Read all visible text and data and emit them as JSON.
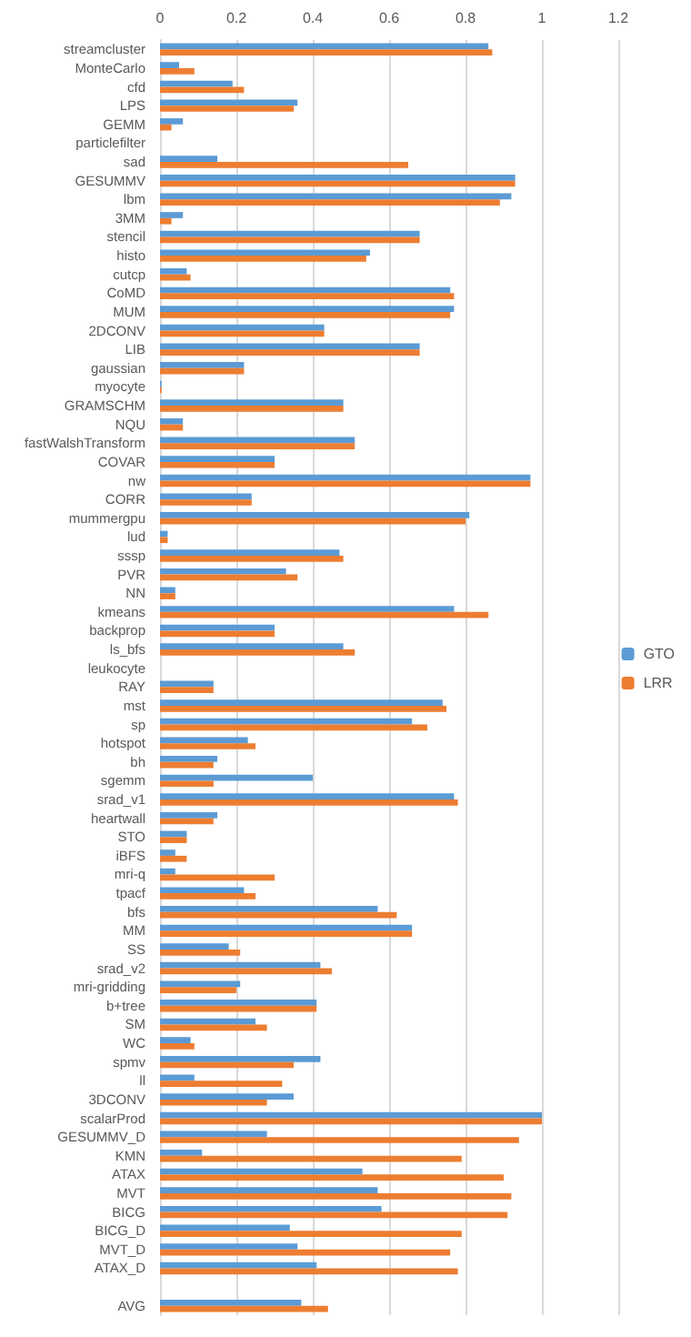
{
  "chart_data": {
    "type": "bar",
    "orientation": "horizontal",
    "categories": [
      "streamcluster",
      "MonteCarlo",
      "cfd",
      "LPS",
      "GEMM",
      "particlefilter",
      "sad",
      "GESUMMV",
      "lbm",
      "3MM",
      "stencil",
      "histo",
      "cutcp",
      "CoMD",
      "MUM",
      "2DCONV",
      "LIB",
      "gaussian",
      "myocyte",
      "GRAMSCHM",
      "NQU",
      "fastWalshTransform",
      "COVAR",
      "nw",
      "CORR",
      "mummergpu",
      "lud",
      "sssp",
      "PVR",
      "NN",
      "kmeans",
      "backprop",
      "ls_bfs",
      "leukocyte",
      "RAY",
      "mst",
      "sp",
      "hotspot",
      "bh",
      "sgemm",
      "srad_v1",
      "heartwall",
      "STO",
      "iBFS",
      "mri-q",
      "tpacf",
      "bfs",
      "MM",
      "SS",
      "srad_v2",
      "mri-gridding",
      "b+tree",
      "SM",
      "WC",
      "spmv",
      "ll",
      "3DCONV",
      "scalarProd",
      "GESUMMV_D",
      "KMN",
      "ATAX",
      "MVT",
      "BICG",
      "BICG_D",
      "MVT_D",
      "ATAX_D",
      null,
      "AVG"
    ],
    "series": [
      {
        "name": "GTO",
        "color": "#5b9bd5",
        "values": [
          0.86,
          0.05,
          0.19,
          0.36,
          0.06,
          0,
          0.15,
          0.93,
          0.92,
          0.06,
          0.68,
          0.55,
          0.07,
          0.76,
          0.77,
          0.43,
          0.68,
          0.22,
          0.004,
          0.48,
          0.06,
          0.51,
          0.3,
          0.97,
          0.24,
          0.81,
          0.02,
          0.47,
          0.33,
          0.04,
          0.77,
          0.3,
          0.48,
          0,
          0.14,
          0.74,
          0.66,
          0.23,
          0.15,
          0.4,
          0.77,
          0.15,
          0.07,
          0.04,
          0.04,
          0.22,
          0.57,
          0.66,
          0.18,
          0.42,
          0.21,
          0.41,
          0.25,
          0.08,
          0.42,
          0.09,
          0.35,
          1.0,
          0.28,
          0.11,
          0.53,
          0.57,
          0.58,
          0.34,
          0.36,
          0.41,
          null,
          0.37
        ]
      },
      {
        "name": "LRR",
        "color": "#ed7d31",
        "values": [
          0.87,
          0.09,
          0.22,
          0.35,
          0.03,
          0,
          0.65,
          0.93,
          0.89,
          0.03,
          0.68,
          0.54,
          0.08,
          0.77,
          0.76,
          0.43,
          0.68,
          0.22,
          0.004,
          0.48,
          0.06,
          0.51,
          0.3,
          0.97,
          0.24,
          0.8,
          0.02,
          0.48,
          0.36,
          0.04,
          0.86,
          0.3,
          0.51,
          0,
          0.14,
          0.75,
          0.7,
          0.25,
          0.14,
          0.14,
          0.78,
          0.14,
          0.07,
          0.07,
          0.3,
          0.25,
          0.62,
          0.66,
          0.21,
          0.45,
          0.2,
          0.41,
          0.28,
          0.09,
          0.35,
          0.32,
          0.28,
          1.0,
          0.94,
          0.79,
          0.9,
          0.92,
          0.91,
          0.79,
          0.76,
          0.78,
          null,
          0.44
        ]
      }
    ],
    "xlim": [
      0,
      1.2
    ],
    "xticks": [
      0,
      0.2,
      0.4,
      0.6,
      0.8,
      1,
      1.2
    ],
    "grid": "x",
    "legend": "right"
  }
}
